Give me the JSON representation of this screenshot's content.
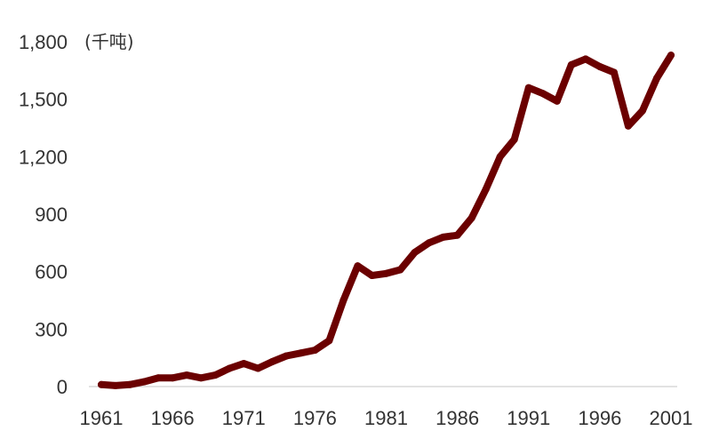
{
  "chart_data": {
    "type": "line",
    "unit_label": "(千吨)",
    "title": "",
    "xlabel": "",
    "ylabel": "",
    "xlim": [
      1961,
      2001
    ],
    "ylim": [
      0,
      1800
    ],
    "y_ticks": [
      0,
      300,
      600,
      900,
      1200,
      1500,
      1800
    ],
    "y_tick_labels": [
      "0",
      "300",
      "600",
      "900",
      "1,200",
      "1,500",
      "1,800"
    ],
    "x_ticks": [
      1961,
      1966,
      1971,
      1976,
      1981,
      1986,
      1991,
      1996,
      2001
    ],
    "x_tick_labels": [
      "1961",
      "1966",
      "1971",
      "1976",
      "1981",
      "1986",
      "1991",
      "1996",
      "2001"
    ],
    "grid": false,
    "legend": "none",
    "series": [
      {
        "color": "#6b0000",
        "x": [
          1961,
          1962,
          1963,
          1964,
          1965,
          1966,
          1967,
          1968,
          1969,
          1970,
          1971,
          1972,
          1973,
          1974,
          1975,
          1976,
          1977,
          1978,
          1979,
          1980,
          1981,
          1982,
          1983,
          1984,
          1985,
          1986,
          1987,
          1988,
          1989,
          1990,
          1991,
          1992,
          1993,
          1994,
          1995,
          1996,
          1997,
          1998,
          1999,
          2000,
          2001
        ],
        "values": [
          10,
          5,
          10,
          25,
          45,
          45,
          60,
          45,
          60,
          95,
          120,
          95,
          130,
          160,
          175,
          190,
          240,
          450,
          630,
          580,
          590,
          610,
          700,
          750,
          780,
          790,
          880,
          1030,
          1200,
          1290,
          1560,
          1530,
          1490,
          1680,
          1710,
          1670,
          1640,
          1360,
          1440,
          1610,
          1730
        ]
      }
    ]
  }
}
